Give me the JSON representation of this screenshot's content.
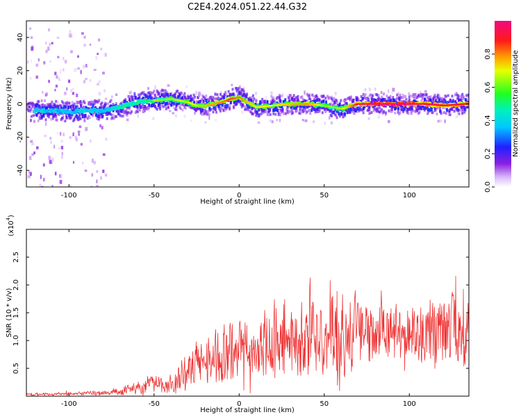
{
  "figure": {
    "title": "C2E4.2024.051.22.44.G32"
  },
  "chart_data": [
    {
      "type": "heatmap",
      "xlabel": "Height of straight line (km)",
      "ylabel": "Frequency (Hz)",
      "xlim": [
        -125,
        135
      ],
      "ylim": [
        -50,
        50
      ],
      "x_ticks": [
        -100,
        -50,
        0,
        50,
        100
      ],
      "x_tick_labels": [
        "-100",
        "-50",
        "0",
        "50",
        "100"
      ],
      "y_ticks": [
        -40,
        -20,
        0,
        20,
        40
      ],
      "y_tick_labels": [
        "-40",
        "-20",
        "0",
        "20",
        "40"
      ],
      "colorbar": {
        "label": "Normalized spectral amplitude",
        "range": [
          0,
          1
        ],
        "ticks": [
          0,
          0.2,
          0.4,
          0.6,
          0.8
        ],
        "tick_labels": [
          "0.0",
          "0.2",
          "0.4",
          "0.6",
          "0.8"
        ],
        "colormap": "rainbow (white-violet-blue-cyan-green-yellow-red-magenta)"
      },
      "ridge": {
        "x": [
          -120,
          -110,
          -100,
          -90,
          -80,
          -70,
          -60,
          -50,
          -40,
          -30,
          -25,
          -20,
          -10,
          -5,
          0,
          10,
          20,
          30,
          40,
          50,
          60,
          70,
          80,
          90,
          100,
          110,
          120,
          133
        ],
        "frequency_hz": [
          -4,
          -4,
          -5,
          -4,
          -4,
          -2,
          1,
          2,
          3,
          1,
          -1,
          -1,
          1,
          3,
          4,
          -2,
          -1,
          0,
          0,
          -1,
          -3,
          0,
          0,
          0,
          0,
          0,
          -1,
          0
        ],
        "peak_amplitude": [
          0.45,
          0.4,
          0.4,
          0.45,
          0.4,
          0.5,
          0.5,
          0.55,
          0.55,
          0.6,
          0.6,
          0.65,
          0.7,
          0.75,
          0.7,
          0.6,
          0.6,
          0.65,
          0.7,
          0.55,
          0.55,
          0.8,
          0.9,
          0.95,
          0.9,
          0.85,
          0.8,
          0.8
        ]
      }
    },
    {
      "type": "line",
      "xlabel": "Height of straight line (km)",
      "ylabel": "SNR (10 * v/v)",
      "y_multiplier_label": "(x10",
      "y_multiplier_exp": "4",
      "y_multiplier_close": ")",
      "xlim": [
        -125,
        135
      ],
      "ylim": [
        0,
        3
      ],
      "x_ticks": [
        -100,
        -50,
        0,
        50,
        100
      ],
      "x_tick_labels": [
        "-100",
        "-50",
        "0",
        "50",
        "100"
      ],
      "y_ticks": [
        0.5,
        1.0,
        1.5,
        2.0,
        2.5
      ],
      "y_tick_labels": [
        "0.5",
        "1.0",
        "1.5",
        "2.0",
        "2.5"
      ],
      "series": [
        {
          "color": "#ee3333",
          "envelope_x": [
            -125,
            -100,
            -80,
            -70,
            -60,
            -50,
            -40,
            -30,
            -25,
            -20,
            -10,
            0,
            10,
            20,
            30,
            40,
            50,
            60,
            70,
            80,
            90,
            100,
            110,
            120,
            130,
            135
          ],
          "envelope_mean": [
            0.04,
            0.06,
            0.07,
            0.12,
            0.2,
            0.3,
            0.25,
            0.6,
            0.7,
            0.8,
            0.9,
            1.0,
            1.25,
            1.3,
            1.35,
            1.4,
            1.45,
            1.35,
            1.5,
            1.5,
            1.55,
            1.55,
            1.45,
            1.55,
            1.4,
            1.5
          ],
          "envelope_amp": [
            0.03,
            0.04,
            0.05,
            0.1,
            0.15,
            0.2,
            0.2,
            0.45,
            0.5,
            0.45,
            0.5,
            0.55,
            0.65,
            0.8,
            0.85,
            0.9,
            0.95,
            0.95,
            0.7,
            0.45,
            0.4,
            0.4,
            0.5,
            0.55,
            0.7,
            0.7
          ]
        }
      ]
    }
  ]
}
